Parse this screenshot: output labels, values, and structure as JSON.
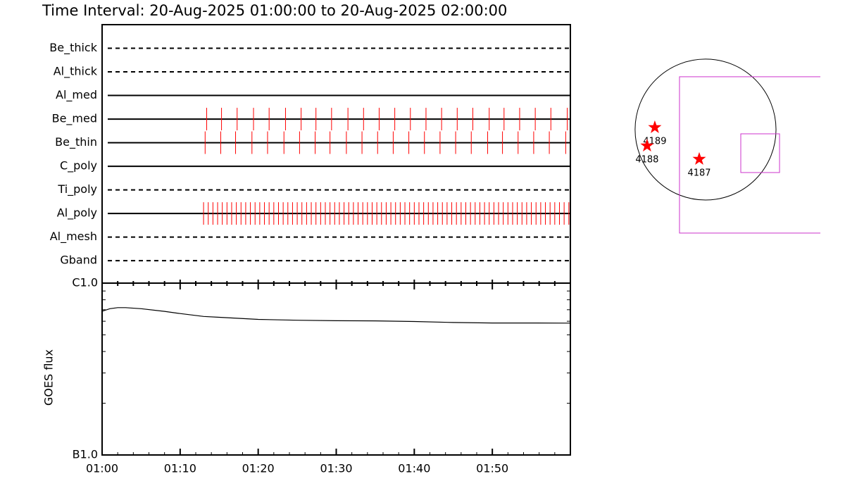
{
  "chart_data": [
    {
      "type": "event",
      "title": "Time Interval: 20-Aug-2025 01:00:00 to 20-Aug-2025 02:00:00",
      "xlim": [
        0,
        60
      ],
      "color": "#ff0000",
      "rows": [
        {
          "name": "Be_thick",
          "style": "dashed",
          "events": []
        },
        {
          "name": "Al_thick",
          "style": "dashed",
          "events": []
        },
        {
          "name": "Al_med",
          "style": "solid",
          "events": []
        },
        {
          "name": "Be_med",
          "style": "solid",
          "events": [
            13.4,
            15.3,
            17.3,
            19.4,
            21.4,
            23.5,
            25.5,
            27.4,
            29.4,
            31.5,
            33.5,
            35.5,
            37.5,
            39.5,
            41.5,
            43.5,
            45.5,
            47.5,
            49.6,
            51.5,
            53.5,
            55.5,
            57.5,
            59.6
          ]
        },
        {
          "name": "Be_thin",
          "style": "solid",
          "events": [
            13.2,
            15.2,
            17.1,
            19.2,
            21.2,
            23.3,
            25.3,
            27.3,
            29.2,
            31.3,
            33.3,
            35.3,
            37.3,
            39.3,
            41.3,
            43.3,
            45.3,
            47.3,
            49.4,
            51.3,
            53.3,
            55.3,
            57.3,
            59.4
          ]
        },
        {
          "name": "C_poly",
          "style": "solid",
          "events": []
        },
        {
          "name": "Ti_poly",
          "style": "dashed",
          "events": []
        },
        {
          "name": "Al_poly",
          "style": "solid",
          "events": [
            13.0,
            13.6,
            14.2,
            14.8,
            15.4,
            16.0,
            16.6,
            17.2,
            17.8,
            18.4,
            19.0,
            19.6,
            20.2,
            20.8,
            21.4,
            22.0,
            22.6,
            23.2,
            23.8,
            24.4,
            25.0,
            25.6,
            26.2,
            26.8,
            27.4,
            28.0,
            28.6,
            29.2,
            29.8,
            30.4,
            31.0,
            31.6,
            32.2,
            32.8,
            33.4,
            34.0,
            34.6,
            35.2,
            35.8,
            36.4,
            37.0,
            37.6,
            38.2,
            38.8,
            39.4,
            40.0,
            40.6,
            41.2,
            41.8,
            42.4,
            43.0,
            43.6,
            44.2,
            44.8,
            45.4,
            46.0,
            46.6,
            47.2,
            47.8,
            48.4,
            49.0,
            49.6,
            50.2,
            50.8,
            51.4,
            52.0,
            52.6,
            53.2,
            53.8,
            54.4,
            55.0,
            55.6,
            56.2,
            56.8,
            57.4,
            58.0,
            58.6,
            59.2,
            59.8
          ]
        },
        {
          "name": "Al_mesh",
          "style": "dashed",
          "events": []
        },
        {
          "name": "Gband",
          "style": "dashed",
          "events": []
        }
      ]
    },
    {
      "type": "line",
      "y_label": "GOES flux",
      "log_y": true,
      "color": "#000000",
      "xlim": [
        0,
        60
      ],
      "xticks": [
        {
          "value": 0,
          "label": "01:00"
        },
        {
          "value": 10,
          "label": "01:10"
        },
        {
          "value": 20,
          "label": "01:20"
        },
        {
          "value": 30,
          "label": "01:30"
        },
        {
          "value": 40,
          "label": "01:40"
        },
        {
          "value": 50,
          "label": "01:50"
        }
      ],
      "xticks_minor": [
        2,
        4,
        6,
        8,
        12,
        14,
        16,
        18,
        22,
        24,
        26,
        28,
        32,
        34,
        36,
        38,
        42,
        44,
        46,
        48,
        52,
        54,
        56,
        58
      ],
      "ylim": [
        1e-07,
        1e-06
      ],
      "yticks": [
        {
          "value": 1e-07,
          "label": "B1.0"
        },
        {
          "value": 1e-06,
          "label": "C1.0"
        }
      ],
      "yticks_minor": [
        2e-07,
        3e-07,
        4e-07,
        5e-07,
        6e-07,
        7e-07,
        8e-07,
        9e-07
      ],
      "x": [
        0,
        1,
        2,
        3,
        5,
        8,
        10,
        13,
        15,
        20,
        25,
        30,
        35,
        40,
        45,
        50,
        55,
        60
      ],
      "values": [
        6.86e-07,
        7.1e-07,
        7.2e-07,
        7.2e-07,
        7.1e-07,
        6.85e-07,
        6.65e-07,
        6.4e-07,
        6.33e-07,
        6.15e-07,
        6.08e-07,
        6.04e-07,
        6.03e-07,
        5.98e-07,
        5.9e-07,
        5.86e-07,
        5.86e-07,
        5.85e-07
      ]
    },
    {
      "type": "map",
      "xlim": [
        -1170,
        1564
      ],
      "ylim": [
        -1690,
        1190
      ],
      "limb_radius": 960,
      "boxes": [
        {
          "color": "#cc33cc",
          "x": [
            -355,
            1700
          ],
          "y": [
            -1411,
            720
          ]
        },
        {
          "color": "#cc33cc",
          "x": [
            480,
            1008
          ],
          "y": [
            -586,
            -58
          ]
        }
      ],
      "regions": [
        {
          "name": "4189",
          "x": -691,
          "y": 29
        },
        {
          "name": "4188",
          "x": -797,
          "y": -221
        },
        {
          "name": "4187",
          "x": -86,
          "y": -403
        }
      ],
      "region_color": "#ff0000"
    }
  ]
}
